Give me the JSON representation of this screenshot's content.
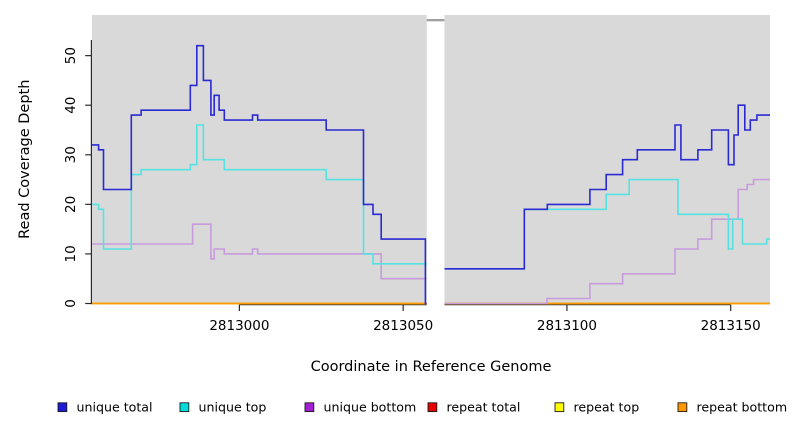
{
  "chart_data": {
    "type": "line",
    "subtype": "step-coverage",
    "title": "",
    "xlabel": "Coordinate in Reference Genome",
    "ylabel": "Read Coverage Depth",
    "xlim": [
      2812955,
      2813162
    ],
    "ylim": [
      0,
      58.2
    ],
    "grid": false,
    "panel_bg": "#d9d9d9",
    "axis_color": "#2b2b2b",
    "gap_region": {
      "from": 2813057.2,
      "to": 2813062.6,
      "fill": "#ffffff",
      "top_dash_color": "#a0a0a0"
    },
    "x_ticks": [
      {
        "value": 2813000,
        "label": "2813000"
      },
      {
        "value": 2813050,
        "label": "2813050"
      },
      {
        "value": 2813100,
        "label": "2813100"
      },
      {
        "value": 2813150,
        "label": "2813150"
      }
    ],
    "y_ticks": [
      {
        "value": 0,
        "label": "0"
      },
      {
        "value": 10,
        "label": "10"
      },
      {
        "value": 20,
        "label": "20"
      },
      {
        "value": 30,
        "label": "30"
      },
      {
        "value": 40,
        "label": "40"
      },
      {
        "value": 50,
        "label": "50"
      }
    ],
    "draw_order": [
      "repeat total",
      "repeat top",
      "repeat bottom",
      "unique bottom",
      "unique top",
      "unique total"
    ],
    "series": [
      {
        "name": "unique total",
        "line_color": "#2a2ad2",
        "legend_fill": "#1d1dd8",
        "segments": [
          {
            "points": [
              [
                2812955,
                32
              ],
              [
                2812957,
                31
              ],
              [
                2812958.5,
                23
              ],
              [
                2812967,
                38
              ],
              [
                2812970,
                39
              ],
              [
                2812985,
                44
              ],
              [
                2812987,
                52
              ],
              [
                2812989,
                45
              ],
              [
                2812991.3,
                38
              ],
              [
                2812992.3,
                42
              ],
              [
                2812993.8,
                39
              ],
              [
                2812995.4,
                37
              ],
              [
                2813004,
                38
              ],
              [
                2813005.6,
                37
              ],
              [
                2813026.5,
                35
              ],
              [
                2813037.9,
                20
              ],
              [
                2813040.8,
                18
              ],
              [
                2813043.3,
                13
              ],
              [
                2813056.8,
                0
              ]
            ],
            "end": 2813057.2
          },
          {
            "points": [
              [
                2813062.6,
                7
              ],
              [
                2813087,
                19
              ],
              [
                2813094,
                20
              ],
              [
                2813107,
                23
              ],
              [
                2813112,
                26
              ],
              [
                2813117,
                29
              ],
              [
                2813121.5,
                31
              ],
              [
                2813133,
                36
              ],
              [
                2813134.8,
                29
              ],
              [
                2813140,
                31
              ],
              [
                2813144.2,
                35
              ],
              [
                2813149.3,
                28
              ],
              [
                2813151,
                34
              ],
              [
                2813152.3,
                40
              ],
              [
                2813154.3,
                35
              ],
              [
                2813156,
                37
              ],
              [
                2813158,
                38
              ]
            ],
            "end": 2813162
          }
        ]
      },
      {
        "name": "unique top",
        "line_color": "#55e2e2",
        "legend_fill": "#00dddd",
        "segments": [
          {
            "points": [
              [
                2812955,
                20
              ],
              [
                2812957,
                19
              ],
              [
                2812958.5,
                11
              ],
              [
                2812967,
                26
              ],
              [
                2812970,
                27
              ],
              [
                2812985,
                28
              ],
              [
                2812987,
                36
              ],
              [
                2812989,
                29
              ],
              [
                2812995.4,
                27
              ],
              [
                2813026.5,
                25
              ],
              [
                2813037.9,
                10
              ],
              [
                2813040.8,
                8
              ]
            ],
            "end": 2813057.2
          },
          {
            "points": [
              [
                2813062.6,
                7
              ],
              [
                2813087,
                19
              ],
              [
                2813112,
                22
              ],
              [
                2813119,
                25
              ],
              [
                2813133.9,
                18
              ],
              [
                2813149.3,
                11
              ],
              [
                2813150.6,
                17
              ],
              [
                2813153.6,
                12
              ],
              [
                2813161,
                13
              ]
            ],
            "end": 2813162
          }
        ]
      },
      {
        "name": "unique bottom",
        "line_color": "#c79bdc",
        "legend_fill": "#a21fd4",
        "segments": [
          {
            "points": [
              [
                2812955,
                12
              ],
              [
                2812985.7,
                16
              ],
              [
                2812991.3,
                9
              ],
              [
                2812992.3,
                11
              ],
              [
                2812995.4,
                10
              ],
              [
                2813004,
                11
              ],
              [
                2813005.6,
                10
              ],
              [
                2813043.3,
                5
              ]
            ],
            "end": 2813057.2
          },
          {
            "points": [
              [
                2813062.6,
                0
              ],
              [
                2813093.9,
                1
              ],
              [
                2813107,
                4
              ],
              [
                2813117,
                6
              ],
              [
                2813133,
                11
              ],
              [
                2813140,
                13
              ],
              [
                2813144.2,
                17
              ],
              [
                2813152.3,
                23
              ],
              [
                2813155,
                24
              ],
              [
                2813157,
                25
              ]
            ],
            "end": 2813162
          }
        ]
      },
      {
        "name": "repeat total",
        "line_color": "#e60000",
        "legend_fill": "#e60000",
        "segments": [
          {
            "points": [
              [
                2812955,
                0
              ]
            ],
            "end": 2813162
          }
        ]
      },
      {
        "name": "repeat top",
        "line_color": "#fdfd00",
        "legend_fill": "#fdfd00",
        "segments": [
          {
            "points": [
              [
                2812955,
                0
              ]
            ],
            "end": 2813162
          }
        ]
      },
      {
        "name": "repeat bottom",
        "line_color": "#ff9800",
        "legend_fill": "#ff9800",
        "segments": [
          {
            "points": [
              [
                2812955,
                0
              ]
            ],
            "end": 2813162
          }
        ]
      }
    ],
    "legend": {
      "position": "bottom",
      "entries": [
        {
          "label": "unique total",
          "fill": "#1d1dd8"
        },
        {
          "label": "unique top",
          "fill": "#00dddd"
        },
        {
          "label": "unique bottom",
          "fill": "#a21fd4"
        },
        {
          "label": "repeat total",
          "fill": "#e60000"
        },
        {
          "label": "repeat top",
          "fill": "#fdfd00"
        },
        {
          "label": "repeat bottom",
          "fill": "#ff9800"
        }
      ]
    }
  }
}
